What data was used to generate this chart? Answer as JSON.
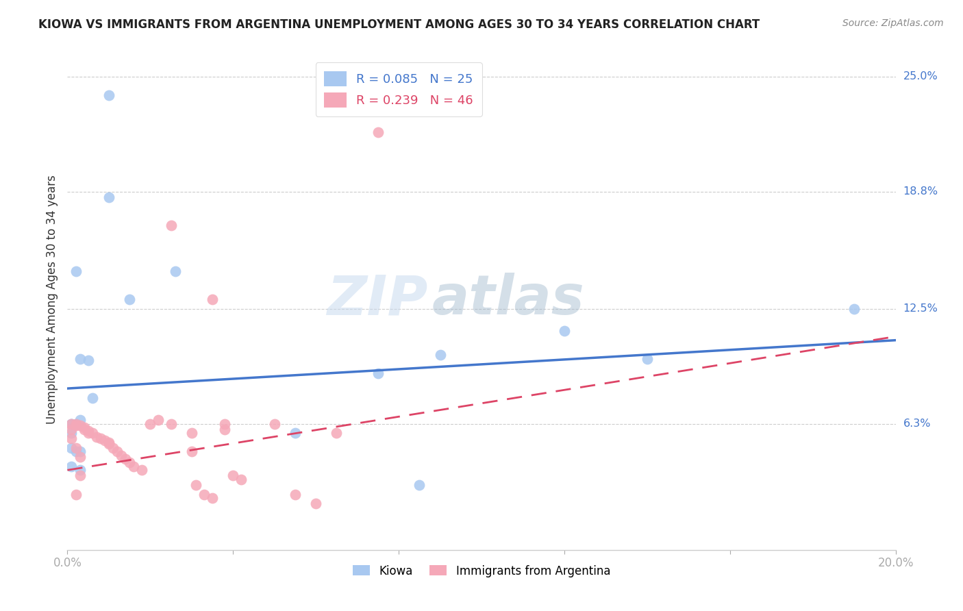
{
  "title": "KIOWA VS IMMIGRANTS FROM ARGENTINA UNEMPLOYMENT AMONG AGES 30 TO 34 YEARS CORRELATION CHART",
  "source": "Source: ZipAtlas.com",
  "ylabel": "Unemployment Among Ages 30 to 34 years",
  "xlim": [
    0.0,
    0.2
  ],
  "ylim": [
    -0.005,
    0.265
  ],
  "blue_R": 0.085,
  "blue_N": 25,
  "pink_R": 0.239,
  "pink_N": 46,
  "blue_color": "#a8c8f0",
  "pink_color": "#f5a8b8",
  "blue_line_color": "#4477cc",
  "pink_line_color": "#dd4466",
  "watermark_zip": "ZIP",
  "watermark_atlas": "atlas",
  "ytick_vals": [
    0.0,
    0.063,
    0.125,
    0.188,
    0.25
  ],
  "ytick_labels": [
    "",
    "6.3%",
    "12.5%",
    "18.8%",
    "25.0%"
  ],
  "kiowa_x": [
    0.01,
    0.01,
    0.026,
    0.003,
    0.005,
    0.006,
    0.003,
    0.001,
    0.001,
    0.002,
    0.001,
    0.001,
    0.001,
    0.015,
    0.075,
    0.12,
    0.14,
    0.19,
    0.09,
    0.003,
    0.003,
    0.055,
    0.002,
    0.085,
    0.002
  ],
  "kiowa_y": [
    0.24,
    0.185,
    0.145,
    0.098,
    0.097,
    0.077,
    0.065,
    0.063,
    0.063,
    0.063,
    0.058,
    0.05,
    0.04,
    0.13,
    0.09,
    0.113,
    0.098,
    0.125,
    0.1,
    0.048,
    0.038,
    0.058,
    0.048,
    0.03,
    0.145
  ],
  "argentina_x": [
    0.075,
    0.025,
    0.035,
    0.001,
    0.002,
    0.002,
    0.003,
    0.004,
    0.004,
    0.005,
    0.005,
    0.006,
    0.007,
    0.008,
    0.009,
    0.01,
    0.01,
    0.011,
    0.012,
    0.013,
    0.014,
    0.015,
    0.016,
    0.018,
    0.02,
    0.022,
    0.025,
    0.03,
    0.03,
    0.031,
    0.033,
    0.035,
    0.038,
    0.038,
    0.04,
    0.042,
    0.05,
    0.055,
    0.06,
    0.065,
    0.001,
    0.001,
    0.002,
    0.003,
    0.003,
    0.002
  ],
  "argentina_y": [
    0.22,
    0.17,
    0.13,
    0.063,
    0.063,
    0.062,
    0.062,
    0.061,
    0.06,
    0.059,
    0.058,
    0.058,
    0.056,
    0.055,
    0.054,
    0.053,
    0.052,
    0.05,
    0.048,
    0.046,
    0.044,
    0.042,
    0.04,
    0.038,
    0.063,
    0.065,
    0.063,
    0.058,
    0.048,
    0.03,
    0.025,
    0.023,
    0.063,
    0.06,
    0.035,
    0.033,
    0.063,
    0.025,
    0.02,
    0.058,
    0.06,
    0.055,
    0.05,
    0.045,
    0.035,
    0.025
  ],
  "blue_line_x": [
    0.0,
    0.2
  ],
  "blue_line_y": [
    0.082,
    0.108
  ],
  "pink_line_x": [
    0.0,
    0.2
  ],
  "pink_line_y": [
    0.038,
    0.11
  ]
}
